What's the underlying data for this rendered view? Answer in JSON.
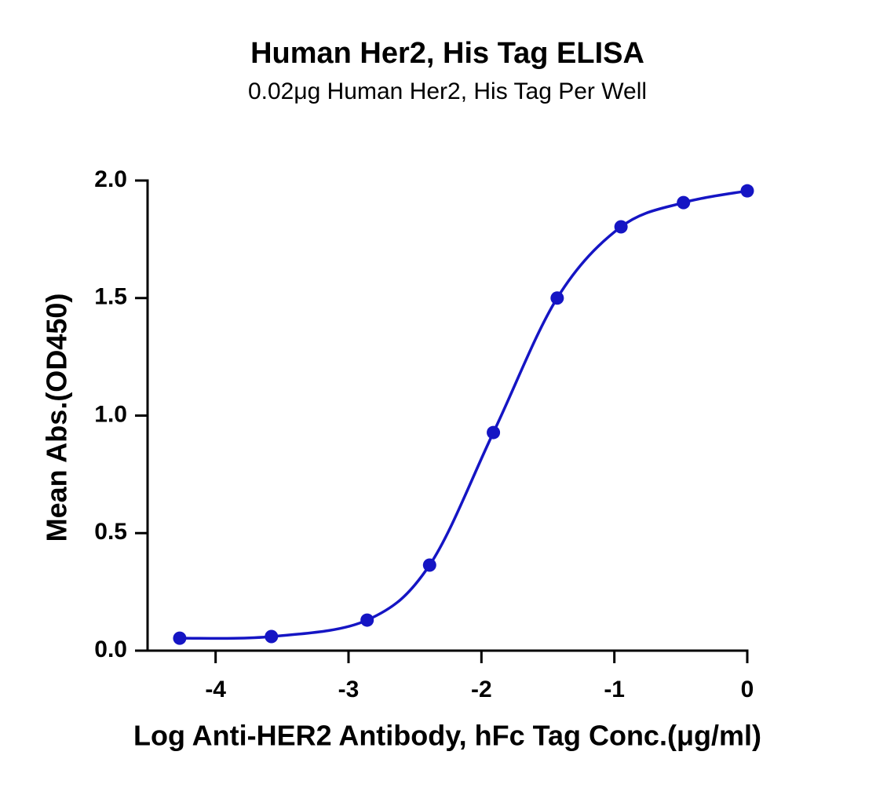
{
  "chart_data": {
    "type": "scatter",
    "title": "Human Her2, His Tag ELISA",
    "subtitle": "0.02μg Human Her2, His Tag Per Well",
    "x_label": "Log Anti-HER2 Antibody, hFc Tag Conc.(μg/ml)",
    "y_label": "Mean Abs.(OD450)",
    "x": [
      -4.27,
      -3.58,
      -2.86,
      -2.39,
      -1.91,
      -1.43,
      -0.95,
      -0.48,
      0
    ],
    "values": [
      0.053,
      0.06,
      0.13,
      0.364,
      0.928,
      1.5,
      1.803,
      1.906,
      1.956
    ],
    "color": "#1515c4",
    "xlim": [
      -4.5,
      0
    ],
    "xticks": [
      -4,
      -3,
      -2,
      -1,
      0
    ],
    "ylim": [
      0,
      2
    ],
    "yticks": [
      {
        "value": 0,
        "label": "0.0"
      },
      {
        "value": 0.5,
        "label": "0.5"
      },
      {
        "value": 1,
        "label": "1.0"
      },
      {
        "value": 1.5,
        "label": "1.5"
      },
      {
        "value": 2,
        "label": "2.0"
      }
    ]
  }
}
